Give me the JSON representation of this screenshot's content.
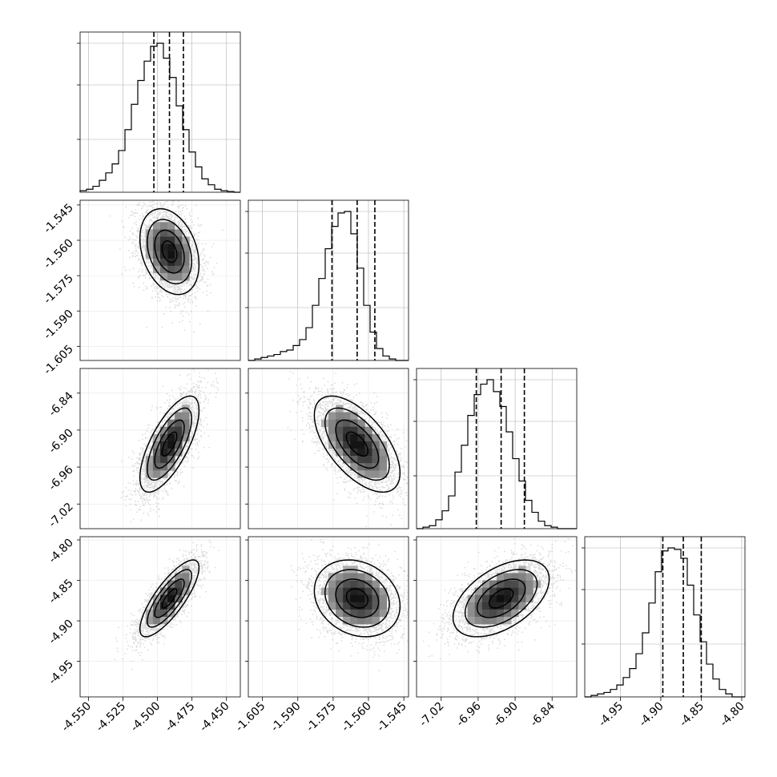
{
  "chart_data": {
    "type": "corner",
    "title": "",
    "parameters": [
      {
        "range": [
          -4.556,
          -4.44
        ],
        "ticks": [
          "-4.550",
          "-4.525",
          "-4.500",
          "-4.475",
          "-4.450"
        ],
        "tick_values": [
          -4.55,
          -4.525,
          -4.5,
          -4.475,
          -4.45
        ],
        "quantiles": [
          -4.5026,
          -4.4913,
          -4.4812
        ],
        "histogram": [
          0.01,
          0.02,
          0.04,
          0.08,
          0.13,
          0.19,
          0.28,
          0.42,
          0.59,
          0.75,
          0.88,
          0.98,
          1.0,
          0.9,
          0.77,
          0.58,
          0.42,
          0.27,
          0.17,
          0.09,
          0.05,
          0.02,
          0.01,
          0.005,
          0.0
        ],
        "hist_grid": [
          0.33,
          0.67,
          0.93
        ]
      },
      {
        "range": [
          -1.611,
          -1.543
        ],
        "ticks": [
          "-1.605",
          "-1.590",
          "-1.575",
          "-1.560",
          "-1.545"
        ],
        "tick_values": [
          -1.605,
          -1.59,
          -1.575,
          -1.56,
          -1.545
        ],
        "quantiles": [
          -1.5755,
          -1.5648,
          -1.5573
        ],
        "histogram": [
          0.0,
          0.01,
          0.02,
          0.03,
          0.04,
          0.06,
          0.07,
          0.1,
          0.14,
          0.22,
          0.37,
          0.55,
          0.75,
          0.9,
          0.99,
          1.0,
          0.85,
          0.62,
          0.37,
          0.19,
          0.08,
          0.03,
          0.01,
          0.0,
          0.0
        ],
        "hist_grid": [
          0.33,
          0.67,
          0.93
        ]
      },
      {
        "range": [
          -7.06,
          -6.8
        ],
        "ticks": [
          "-7.02",
          "-6.96",
          "-6.90",
          "-6.84"
        ],
        "tick_values": [
          -7.02,
          -6.96,
          -6.9,
          -6.84
        ],
        "quantiles": [
          -6.963,
          -6.9227,
          -6.885
        ],
        "histogram": [
          0.0,
          0.01,
          0.02,
          0.06,
          0.12,
          0.22,
          0.38,
          0.56,
          0.76,
          0.9,
          0.97,
          1.0,
          0.92,
          0.82,
          0.65,
          0.47,
          0.32,
          0.19,
          0.11,
          0.05,
          0.02,
          0.01,
          0.0,
          0.0,
          0.0
        ],
        "hist_grid": [
          0.33,
          0.67,
          0.93
        ]
      },
      {
        "range": [
          -4.994,
          -4.796
        ],
        "ticks": [
          "-4.95",
          "-4.90",
          "-4.85",
          "-4.80"
        ],
        "tick_values": [
          -4.95,
          -4.9,
          -4.85,
          -4.8
        ],
        "quantiles": [
          -4.8975,
          -4.8722,
          -4.85
        ],
        "histogram": [
          0.0,
          0.01,
          0.02,
          0.03,
          0.05,
          0.08,
          0.13,
          0.19,
          0.29,
          0.43,
          0.63,
          0.84,
          0.98,
          1.0,
          0.99,
          0.93,
          0.75,
          0.55,
          0.37,
          0.22,
          0.12,
          0.05,
          0.02,
          0.0,
          0.0
        ],
        "hist_grid": [
          0.33,
          0.67,
          0.93
        ]
      }
    ],
    "pairs": [
      {
        "row": 1,
        "col": 0,
        "rho": -0.3,
        "samples": 3500
      },
      {
        "row": 2,
        "col": 0,
        "rho": 0.7,
        "samples": 3500
      },
      {
        "row": 2,
        "col": 1,
        "rho": -0.6,
        "samples": 3500
      },
      {
        "row": 3,
        "col": 0,
        "rho": 0.8,
        "samples": 3500
      },
      {
        "row": 3,
        "col": 1,
        "rho": -0.2,
        "samples": 3500
      },
      {
        "row": 3,
        "col": 2,
        "rho": 0.5,
        "samples": 3500
      }
    ],
    "contour_levels_sigma": [
      0.5,
      1.0,
      1.5,
      2.0
    ],
    "colors": {
      "line": "#000000",
      "grid": "#b0b0b0",
      "points": "#9a9a9a",
      "density_max": "#000000"
    }
  }
}
